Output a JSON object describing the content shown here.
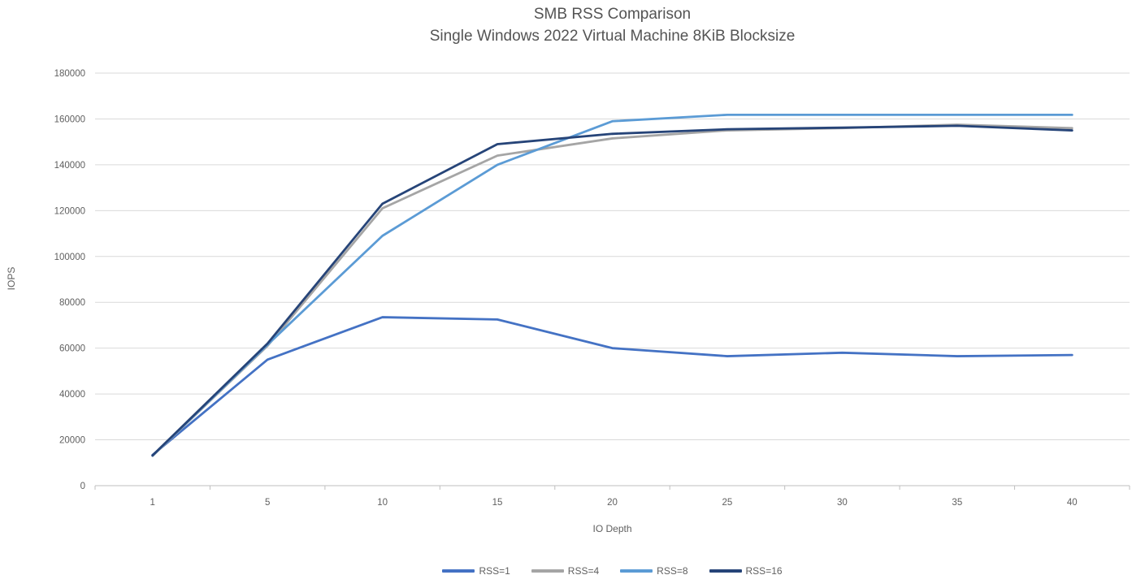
{
  "chart_data": {
    "type": "line",
    "title": "SMB RSS Comparison",
    "subtitle": "Single Windows 2022 Virtual Machine 8KiB Blocksize",
    "xlabel": "IO Depth",
    "ylabel": "IOPS",
    "categories": [
      1,
      5,
      10,
      15,
      20,
      25,
      30,
      35,
      40
    ],
    "y_ticks": [
      0,
      20000,
      40000,
      60000,
      80000,
      100000,
      120000,
      140000,
      160000,
      180000
    ],
    "ylim": [
      0,
      180000
    ],
    "grid": true,
    "legend_position": "bottom",
    "series": [
      {
        "name": "RSS=1",
        "color": "#4472C4",
        "values": [
          13400,
          55000,
          73500,
          72500,
          60000,
          56500,
          58000,
          56500,
          57000
        ]
      },
      {
        "name": "RSS=4",
        "color": "#A5A5A5",
        "values": [
          13000,
          61000,
          121000,
          144000,
          151500,
          155000,
          156000,
          157500,
          156000
        ]
      },
      {
        "name": "RSS=8",
        "color": "#5B9BD5",
        "values": [
          13100,
          61500,
          109000,
          140000,
          159000,
          161800,
          161800,
          161800,
          161800
        ]
      },
      {
        "name": "RSS=16",
        "color": "#264478",
        "values": [
          13200,
          62000,
          123000,
          149000,
          153500,
          155500,
          156200,
          157000,
          155000
        ]
      }
    ]
  },
  "style_colors": {
    "gridline": "#D9D9D9",
    "axis_line": "#BFBFBF",
    "tick_text": "#5f5f5f"
  }
}
